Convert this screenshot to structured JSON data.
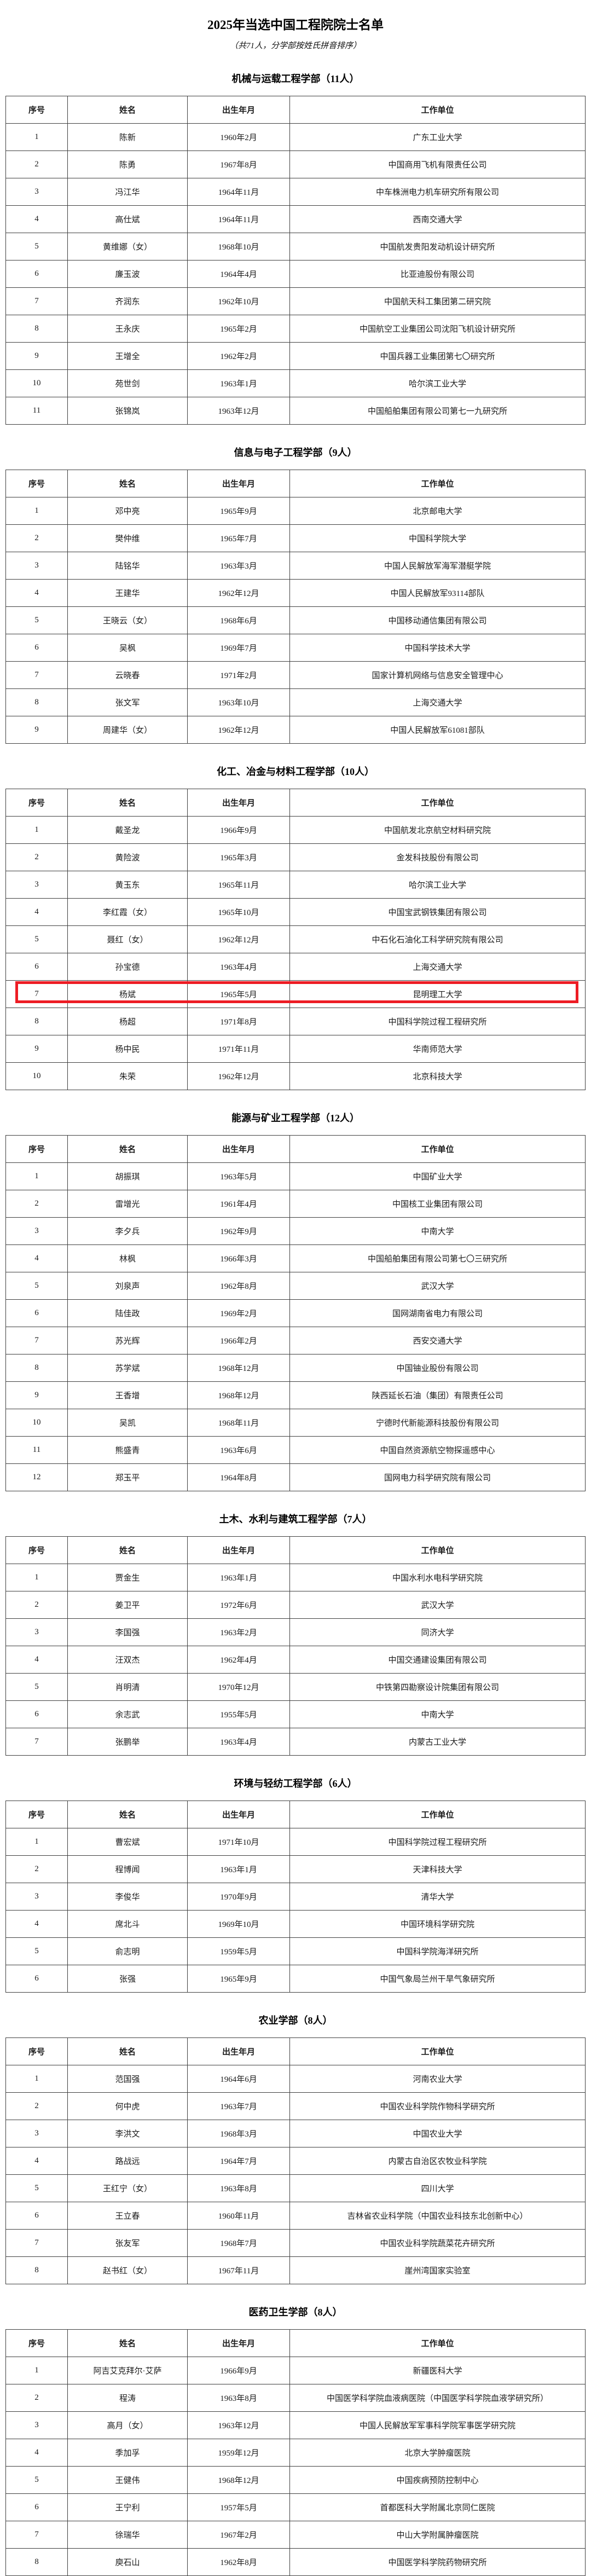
{
  "page": {
    "title": "2025年当选中国工程院院士名单",
    "subtitle": "（共71人，分学部按姓氏拼音排序）"
  },
  "table_headers": [
    "序号",
    "姓名",
    "出生年月",
    "工作单位"
  ],
  "highlight_color": "#ed1c24",
  "sections": [
    {
      "title": "机械与运载工程学部（11人）",
      "highlight_row": null,
      "rows": [
        [
          "1",
          "陈新",
          "1960年2月",
          "广东工业大学"
        ],
        [
          "2",
          "陈勇",
          "1967年8月",
          "中国商用飞机有限责任公司"
        ],
        [
          "3",
          "冯江华",
          "1964年11月",
          "中车株洲电力机车研究所有限公司"
        ],
        [
          "4",
          "高仕斌",
          "1964年11月",
          "西南交通大学"
        ],
        [
          "5",
          "黄维娜（女）",
          "1968年10月",
          "中国航发贵阳发动机设计研究所"
        ],
        [
          "6",
          "廉玉波",
          "1964年4月",
          "比亚迪股份有限公司"
        ],
        [
          "7",
          "齐润东",
          "1962年10月",
          "中国航天科工集团第二研究院"
        ],
        [
          "8",
          "王永庆",
          "1965年2月",
          "中国航空工业集团公司沈阳飞机设计研究所"
        ],
        [
          "9",
          "王增全",
          "1962年2月",
          "中国兵器工业集团第七〇研究所"
        ],
        [
          "10",
          "苑世剑",
          "1963年1月",
          "哈尔滨工业大学"
        ],
        [
          "11",
          "张锦岚",
          "1963年12月",
          "中国船舶集团有限公司第七一九研究所"
        ]
      ]
    },
    {
      "title": "信息与电子工程学部（9人）",
      "highlight_row": null,
      "rows": [
        [
          "1",
          "邓中亮",
          "1965年9月",
          "北京邮电大学"
        ],
        [
          "2",
          "樊仲维",
          "1965年7月",
          "中国科学院大学"
        ],
        [
          "3",
          "陆铭华",
          "1963年3月",
          "中国人民解放军海军潜艇学院"
        ],
        [
          "4",
          "王建华",
          "1962年12月",
          "中国人民解放军93114部队"
        ],
        [
          "5",
          "王晓云（女）",
          "1968年6月",
          "中国移动通信集团有限公司"
        ],
        [
          "6",
          "吴枫",
          "1969年7月",
          "中国科学技术大学"
        ],
        [
          "7",
          "云晓春",
          "1971年2月",
          "国家计算机网络与信息安全管理中心"
        ],
        [
          "8",
          "张文军",
          "1963年10月",
          "上海交通大学"
        ],
        [
          "9",
          "周建华（女）",
          "1962年12月",
          "中国人民解放军61081部队"
        ]
      ]
    },
    {
      "title": "化工、冶金与材料工程学部（10人）",
      "highlight_row": 6,
      "rows": [
        [
          "1",
          "戴圣龙",
          "1966年9月",
          "中国航发北京航空材料研究院"
        ],
        [
          "2",
          "黄险波",
          "1965年3月",
          "金发科技股份有限公司"
        ],
        [
          "3",
          "黄玉东",
          "1965年11月",
          "哈尔滨工业大学"
        ],
        [
          "4",
          "李红霞（女）",
          "1965年10月",
          "中国宝武钢铁集团有限公司"
        ],
        [
          "5",
          "聂红（女）",
          "1962年12月",
          "中石化石油化工科学研究院有限公司"
        ],
        [
          "6",
          "孙宝德",
          "1963年4月",
          "上海交通大学"
        ],
        [
          "7",
          "杨斌",
          "1965年5月",
          "昆明理工大学"
        ],
        [
          "8",
          "杨超",
          "1971年8月",
          "中国科学院过程工程研究所"
        ],
        [
          "9",
          "杨中民",
          "1971年11月",
          "华南师范大学"
        ],
        [
          "10",
          "朱荣",
          "1962年12月",
          "北京科技大学"
        ]
      ]
    },
    {
      "title": "能源与矿业工程学部（12人）",
      "highlight_row": null,
      "rows": [
        [
          "1",
          "胡振琪",
          "1963年5月",
          "中国矿业大学"
        ],
        [
          "2",
          "雷增光",
          "1961年4月",
          "中国核工业集团有限公司"
        ],
        [
          "3",
          "李夕兵",
          "1962年9月",
          "中南大学"
        ],
        [
          "4",
          "林枫",
          "1966年3月",
          "中国船舶集团有限公司第七〇三研究所"
        ],
        [
          "5",
          "刘泉声",
          "1962年8月",
          "武汉大学"
        ],
        [
          "6",
          "陆佳政",
          "1969年2月",
          "国网湖南省电力有限公司"
        ],
        [
          "7",
          "苏光辉",
          "1966年2月",
          "西安交通大学"
        ],
        [
          "8",
          "苏学斌",
          "1968年12月",
          "中国铀业股份有限公司"
        ],
        [
          "9",
          "王香增",
          "1968年12月",
          "陕西延长石油（集团）有限责任公司"
        ],
        [
          "10",
          "吴凯",
          "1968年11月",
          "宁德时代新能源科技股份有限公司"
        ],
        [
          "11",
          "熊盛青",
          "1963年6月",
          "中国自然资源航空物探遥感中心"
        ],
        [
          "12",
          "郑玉平",
          "1964年8月",
          "国网电力科学研究院有限公司"
        ]
      ]
    },
    {
      "title": "土木、水利与建筑工程学部（7人）",
      "highlight_row": null,
      "rows": [
        [
          "1",
          "贾金生",
          "1963年1月",
          "中国水利水电科学研究院"
        ],
        [
          "2",
          "姜卫平",
          "1972年6月",
          "武汉大学"
        ],
        [
          "3",
          "李国强",
          "1963年2月",
          "同济大学"
        ],
        [
          "4",
          "汪双杰",
          "1962年4月",
          "中国交通建设集团有限公司"
        ],
        [
          "5",
          "肖明清",
          "1970年12月",
          "中铁第四勘察设计院集团有限公司"
        ],
        [
          "6",
          "余志武",
          "1955年5月",
          "中南大学"
        ],
        [
          "7",
          "张鹏举",
          "1963年4月",
          "内蒙古工业大学"
        ]
      ]
    },
    {
      "title": "环境与轻纺工程学部（6人）",
      "highlight_row": null,
      "rows": [
        [
          "1",
          "曹宏斌",
          "1971年10月",
          "中国科学院过程工程研究所"
        ],
        [
          "2",
          "程博闻",
          "1963年1月",
          "天津科技大学"
        ],
        [
          "3",
          "李俊华",
          "1970年9月",
          "清华大学"
        ],
        [
          "4",
          "席北斗",
          "1969年10月",
          "中国环境科学研究院"
        ],
        [
          "5",
          "俞志明",
          "1959年5月",
          "中国科学院海洋研究所"
        ],
        [
          "6",
          "张强",
          "1965年9月",
          "中国气象局兰州干旱气象研究所"
        ]
      ]
    },
    {
      "title": "农业学部（8人）",
      "highlight_row": null,
      "rows": [
        [
          "1",
          "范国强",
          "1964年6月",
          "河南农业大学"
        ],
        [
          "2",
          "何中虎",
          "1963年7月",
          "中国农业科学院作物科学研究所"
        ],
        [
          "3",
          "李洪文",
          "1968年3月",
          "中国农业大学"
        ],
        [
          "4",
          "路战远",
          "1964年7月",
          "内蒙古自治区农牧业科学院"
        ],
        [
          "5",
          "王红宁（女）",
          "1963年8月",
          "四川大学"
        ],
        [
          "6",
          "王立春",
          "1960年11月",
          "吉林省农业科学院（中国农业科技东北创新中心）"
        ],
        [
          "7",
          "张友军",
          "1968年7月",
          "中国农业科学院蔬菜花卉研究所"
        ],
        [
          "8",
          "赵书红（女）",
          "1967年11月",
          "崖州湾国家实验室"
        ]
      ]
    },
    {
      "title": "医药卫生学部（8人）",
      "highlight_row": null,
      "rows": [
        [
          "1",
          "阿吉艾克拜尔·艾萨",
          "1966年9月",
          "新疆医科大学"
        ],
        [
          "2",
          "程涛",
          "1963年8月",
          "中国医学科学院血液病医院（中国医学科学院血液学研究所）"
        ],
        [
          "3",
          "高月（女）",
          "1963年12月",
          "中国人民解放军军事科学院军事医学研究院"
        ],
        [
          "4",
          "季加孚",
          "1959年12月",
          "北京大学肿瘤医院"
        ],
        [
          "5",
          "王健伟",
          "1968年12月",
          "中国疾病预防控制中心"
        ],
        [
          "6",
          "王宁利",
          "1957年5月",
          "首都医科大学附属北京同仁医院"
        ],
        [
          "7",
          "徐瑞华",
          "1967年2月",
          "中山大学附属肿瘤医院"
        ],
        [
          "8",
          "庾石山",
          "1962年8月",
          "中国医学科学院药物研究所"
        ]
      ]
    }
  ]
}
